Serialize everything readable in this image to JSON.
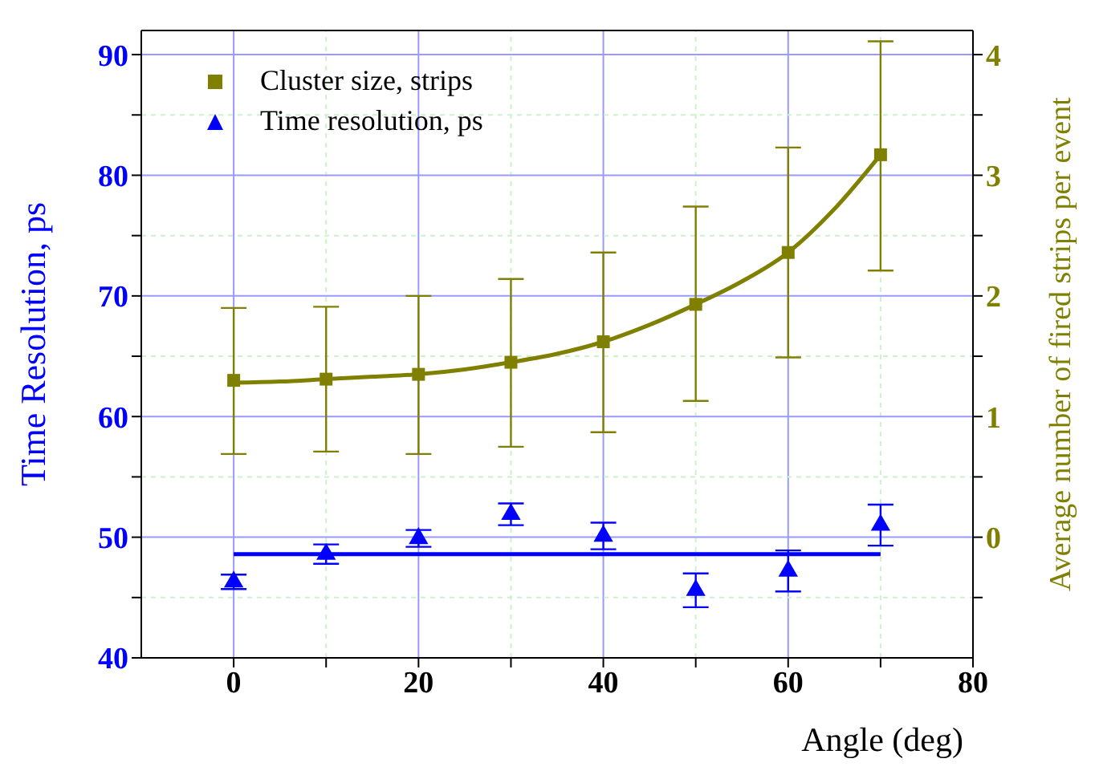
{
  "chart_data": {
    "type": "scatter",
    "xlabel": "Angle (deg)",
    "ylabel": "Time Resolution, ps",
    "y2label": "Average number of fired strips per event",
    "xlim": [
      -10,
      80
    ],
    "xticks": [
      0,
      {
        "value": 10,
        "label": null
      },
      20,
      {
        "value": 30,
        "label": null
      },
      40,
      {
        "value": 50,
        "label": null
      },
      60,
      {
        "value": 70,
        "label": null
      },
      80
    ],
    "ylim": [
      40,
      92
    ],
    "yticks": [
      40,
      {
        "value": 45,
        "label": null
      },
      50,
      {
        "value": 55,
        "label": null
      },
      60,
      {
        "value": 65,
        "label": null
      },
      70,
      {
        "value": 75,
        "label": null
      },
      80,
      {
        "value": 85,
        "label": null
      },
      90
    ],
    "y2lim": [
      -1,
      4.2
    ],
    "y2ticks": [
      {
        "value": -0.5,
        "label": null
      },
      0,
      {
        "value": 0.5,
        "label": null
      },
      1,
      {
        "value": 1.5,
        "label": null
      },
      2,
      {
        "value": 2.5,
        "label": null
      },
      3,
      {
        "value": 3.5,
        "label": null
      },
      4
    ],
    "grid": true,
    "legend": "top left",
    "series": [
      {
        "name": "Cluster size, strips",
        "axis": "y2",
        "color": "#808000",
        "marker": "square",
        "x": [
          0,
          10,
          20,
          30,
          40,
          50,
          60,
          70
        ],
        "values": [
          1.3,
          1.31,
          1.35,
          1.45,
          1.62,
          1.93,
          2.36,
          3.17
        ],
        "errors": [
          [
            0.69,
            1.9
          ],
          [
            0.71,
            1.91
          ],
          [
            0.69,
            2.0
          ],
          [
            0.75,
            2.14
          ],
          [
            0.87,
            2.36
          ],
          [
            1.13,
            2.74
          ],
          [
            1.49,
            3.23
          ],
          [
            2.21,
            4.11
          ]
        ]
      },
      {
        "name": "Time resolution, ps",
        "color": "#0000ff",
        "marker": "triangle",
        "x": [
          0,
          10,
          20,
          30,
          40,
          50,
          60,
          70
        ],
        "values": [
          46.3,
          48.6,
          49.9,
          51.9,
          50.1,
          45.6,
          47.2,
          51.0
        ],
        "errors": [
          0.6,
          0.8,
          0.7,
          0.9,
          1.1,
          1.4,
          1.7,
          1.7
        ]
      },
      {
        "type": "line",
        "axis": "y2",
        "color": "#808000",
        "x": [
          0,
          5,
          10,
          15,
          20,
          25,
          30,
          35,
          40,
          45,
          50,
          55,
          60,
          65,
          70
        ],
        "values": [
          1.28,
          1.29,
          1.31,
          1.33,
          1.35,
          1.39,
          1.45,
          1.52,
          1.62,
          1.76,
          1.93,
          2.12,
          2.36,
          2.72,
          3.17
        ]
      },
      {
        "type": "line",
        "color": "#0000ff",
        "x": [
          0,
          70
        ],
        "values": [
          48.6,
          48.6
        ]
      }
    ]
  }
}
